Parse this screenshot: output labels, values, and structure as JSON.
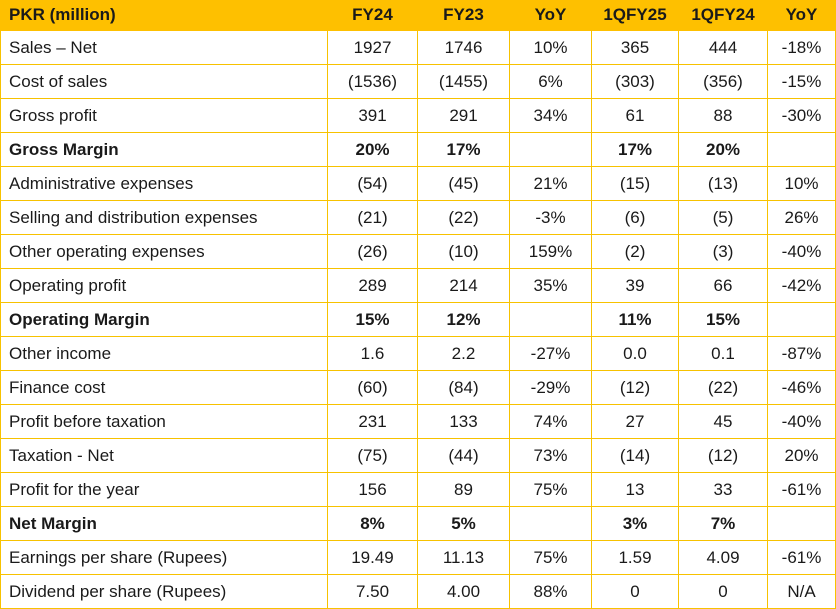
{
  "colors": {
    "header_bg": "#fec000",
    "grid_line": "#f7c200"
  },
  "table": {
    "headers": [
      "PKR (million)",
      "FY24",
      "FY23",
      "YoY",
      "1QFY25",
      "1QFY24",
      "YoY"
    ],
    "rows": [
      {
        "label": "Sales – Net",
        "values": [
          "1927",
          "1746",
          "10%",
          "365",
          "444",
          "-18%"
        ],
        "bold": false
      },
      {
        "label": "Cost of sales",
        "values": [
          "(1536)",
          "(1455)",
          "6%",
          "(303)",
          "(356)",
          "-15%"
        ],
        "bold": false
      },
      {
        "label": "Gross profit",
        "values": [
          "391",
          "291",
          "34%",
          "61",
          "88",
          "-30%"
        ],
        "bold": false
      },
      {
        "label": "Gross Margin",
        "values": [
          "20%",
          "17%",
          "",
          "17%",
          "20%",
          ""
        ],
        "bold": true
      },
      {
        "label": "Administrative expenses",
        "values": [
          "(54)",
          "(45)",
          "21%",
          "(15)",
          "(13)",
          "10%"
        ],
        "bold": false
      },
      {
        "label": "Selling and distribution expenses",
        "values": [
          "(21)",
          "(22)",
          "-3%",
          "(6)",
          "(5)",
          "26%"
        ],
        "bold": false
      },
      {
        "label": "Other operating expenses",
        "values": [
          "(26)",
          "(10)",
          "159%",
          "(2)",
          "(3)",
          "-40%"
        ],
        "bold": false
      },
      {
        "label": "Operating profit",
        "values": [
          "289",
          "214",
          "35%",
          "39",
          "66",
          "-42%"
        ],
        "bold": false
      },
      {
        "label": "Operating Margin",
        "values": [
          "15%",
          "12%",
          "",
          "11%",
          "15%",
          ""
        ],
        "bold": true
      },
      {
        "label": "Other income",
        "values": [
          "1.6",
          "2.2",
          "-27%",
          "0.0",
          "0.1",
          "-87%"
        ],
        "bold": false
      },
      {
        "label": "Finance cost",
        "values": [
          "(60)",
          "(84)",
          "-29%",
          "(12)",
          "(22)",
          "-46%"
        ],
        "bold": false
      },
      {
        "label": "Profit before taxation",
        "values": [
          "231",
          "133",
          "74%",
          "27",
          "45",
          "-40%"
        ],
        "bold": false
      },
      {
        "label": "Taxation - Net",
        "values": [
          "(75)",
          "(44)",
          "73%",
          "(14)",
          "(12)",
          "20%"
        ],
        "bold": false
      },
      {
        "label": "Profit for the year",
        "values": [
          "156",
          "89",
          "75%",
          "13",
          "33",
          "-61%"
        ],
        "bold": false
      },
      {
        "label": "Net Margin",
        "values": [
          "8%",
          "5%",
          "",
          "3%",
          "7%",
          ""
        ],
        "bold": true
      },
      {
        "label": "Earnings per share (Rupees)",
        "values": [
          "19.49",
          "11.13",
          "75%",
          "1.59",
          "4.09",
          "-61%"
        ],
        "bold": false
      },
      {
        "label": "Dividend per share (Rupees)",
        "values": [
          "7.50",
          "4.00",
          "88%",
          "0",
          "0",
          "N/A"
        ],
        "bold": false
      }
    ]
  }
}
